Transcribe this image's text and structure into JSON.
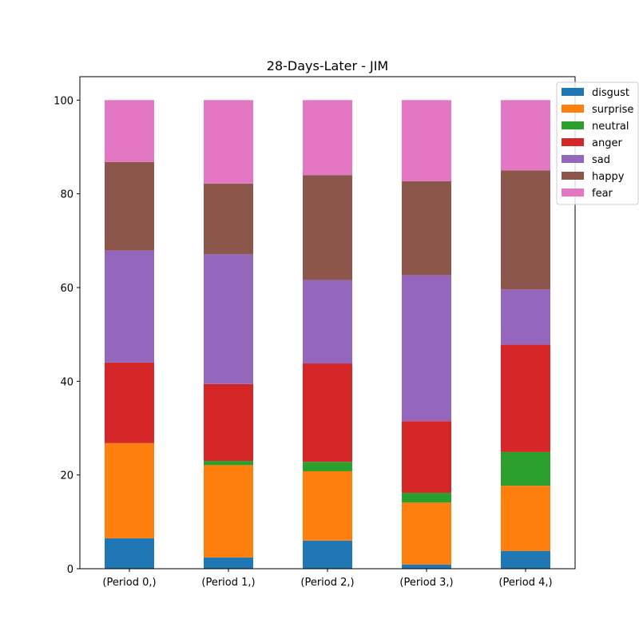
{
  "chart_data": {
    "type": "bar",
    "stacked": true,
    "title": "28-Days-Later - JIM",
    "xlabel": "",
    "ylabel": "",
    "ylim": [
      0,
      105
    ],
    "yticks": [
      "0",
      "20",
      "40",
      "60",
      "80",
      "100"
    ],
    "categories": [
      "(Period 0,)",
      "(Period 1,)",
      "(Period 2,)",
      "(Period 3,)",
      "(Period 4,)"
    ],
    "grid": false,
    "legend_position": "top-right",
    "series": [
      {
        "name": "disgust",
        "color": "#1f77b4",
        "values": [
          6.5,
          2.4,
          6.0,
          0.9,
          3.8
        ]
      },
      {
        "name": "surprise",
        "color": "#ff7f0e",
        "values": [
          20.3,
          19.7,
          14.8,
          13.2,
          13.9
        ]
      },
      {
        "name": "neutral",
        "color": "#2ca02c",
        "values": [
          0.0,
          0.9,
          2.0,
          2.1,
          7.2
        ]
      },
      {
        "name": "anger",
        "color": "#d62728",
        "values": [
          17.2,
          16.4,
          21.0,
          15.3,
          22.9
        ]
      },
      {
        "name": "sad",
        "color": "#9467bd",
        "values": [
          23.9,
          27.7,
          17.8,
          31.1,
          11.8
        ]
      },
      {
        "name": "happy",
        "color": "#8c564b",
        "values": [
          18.9,
          15.1,
          22.4,
          20.1,
          25.4
        ]
      },
      {
        "name": "fear",
        "color": "#e377c2",
        "values": [
          13.2,
          17.8,
          16.0,
          17.3,
          15.0
        ]
      }
    ]
  }
}
